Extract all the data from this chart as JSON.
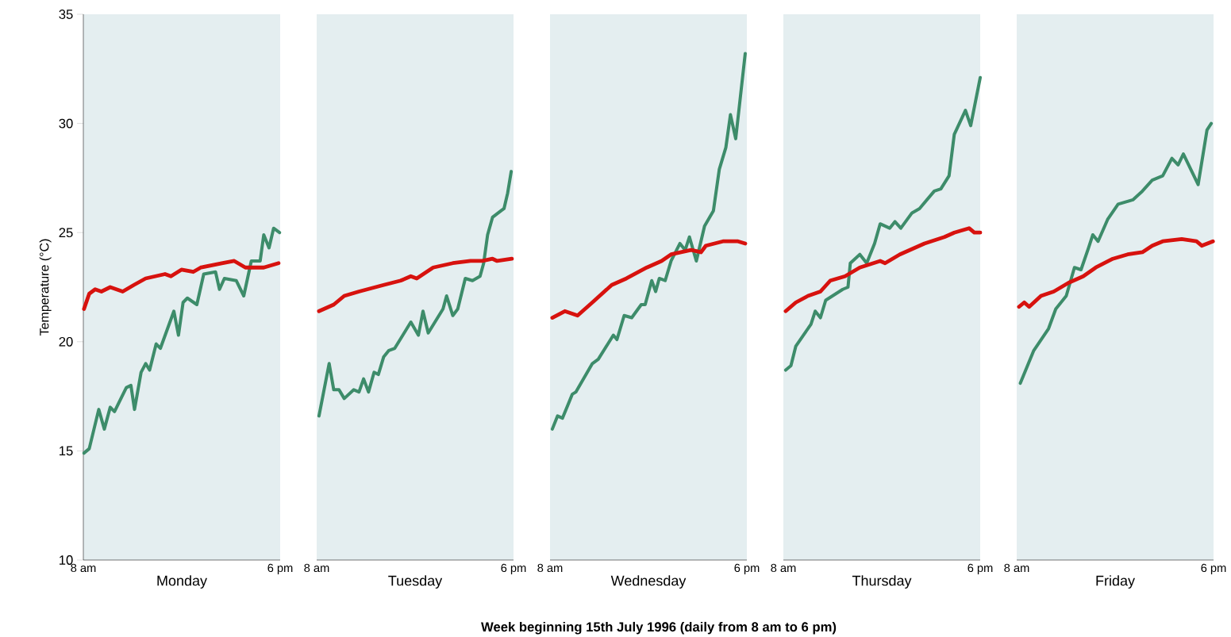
{
  "chart_data": [
    {
      "type": "line",
      "xlabel": "Monday",
      "ylabel": "Temperature (°C)",
      "annotations": [
        "**Week beginning 15th July 1996 (daily from 8 am to 6 pm)**"
      ],
      "xlim": [
        "1996-07-15T08:00",
        "1996-07-15T18:00"
      ],
      "xticks": [
        {
          "value": "1996-07-15T08:00",
          "label": "8 am"
        },
        {
          "value": "1996-07-15T18:00",
          "label": "6 pm"
        }
      ],
      "ylim": [
        10,
        35
      ],
      "yticks": [
        10,
        15,
        20,
        25,
        30,
        35
      ],
      "series": [
        {
          "color": "#3d8c6a",
          "x": [
            "1996-07-15T08:02",
            "1996-07-15T08:18",
            "1996-07-15T08:47",
            "1996-07-15T09:04",
            "1996-07-15T09:22",
            "1996-07-15T09:35",
            "1996-07-15T10:11",
            "1996-07-15T10:25",
            "1996-07-15T10:36",
            "1996-07-15T10:56",
            "1996-07-15T11:10",
            "1996-07-15T11:22",
            "1996-07-15T11:42",
            "1996-07-15T11:55",
            "1996-07-15T12:36",
            "1996-07-15T12:50",
            "1996-07-15T13:04",
            "1996-07-15T13:17",
            "1996-07-15T13:46",
            "1996-07-15T14:07",
            "1996-07-15T14:43",
            "1996-07-15T14:55",
            "1996-07-15T15:10",
            "1996-07-15T15:46",
            "1996-07-15T16:09",
            "1996-07-15T16:32",
            "1996-07-15T16:59",
            "1996-07-15T17:10",
            "1996-07-15T17:26",
            "1996-07-15T17:40",
            "1996-07-15T17:58"
          ],
          "values": [
            14.9,
            15.1,
            16.9,
            16.0,
            17.0,
            16.8,
            17.9,
            18.0,
            16.9,
            18.6,
            19.0,
            18.7,
            19.9,
            19.7,
            21.4,
            20.3,
            21.8,
            22.0,
            21.7,
            23.1,
            23.2,
            22.4,
            22.9,
            22.8,
            22.1,
            23.7,
            23.7,
            24.9,
            24.3,
            25.2,
            25.0
          ]
        },
        {
          "color": "#d7120e",
          "x": [
            "1996-07-15T08:02",
            "1996-07-15T08:18",
            "1996-07-15T08:36",
            "1996-07-15T08:55",
            "1996-07-15T09:22",
            "1996-07-15T10:00",
            "1996-07-15T10:34",
            "1996-07-15T11:10",
            "1996-07-15T12:09",
            "1996-07-15T12:27",
            "1996-07-15T12:59",
            "1996-07-15T13:35",
            "1996-07-15T13:58",
            "1996-07-15T15:05",
            "1996-07-15T15:40",
            "1996-07-15T16:14",
            "1996-07-15T17:10",
            "1996-07-15T17:55"
          ],
          "values": [
            21.5,
            22.2,
            22.4,
            22.3,
            22.5,
            22.3,
            22.6,
            22.9,
            23.1,
            23.0,
            23.3,
            23.2,
            23.4,
            23.6,
            23.7,
            23.4,
            23.4,
            23.6
          ]
        }
      ]
    },
    {
      "type": "line",
      "xlabel": "Tuesday",
      "tick_labels": "x",
      "xlim": [
        "1996-07-16T08:00",
        "1996-07-16T18:00"
      ],
      "xticks": [
        {
          "value": "1996-07-16T08:00",
          "label": "8 am"
        },
        {
          "value": "1996-07-16T18:00",
          "label": "6 pm"
        }
      ],
      "ylim": [
        10,
        35
      ],
      "yticks": [
        10,
        15,
        20,
        25,
        30,
        35
      ],
      "series": [
        {
          "color": "#3d8c6a",
          "x": [
            "1996-07-16T08:07",
            "1996-07-16T08:38",
            "1996-07-16T08:52",
            "1996-07-16T09:08",
            "1996-07-16T09:24",
            "1996-07-16T09:53",
            "1996-07-16T10:09",
            "1996-07-16T10:23",
            "1996-07-16T10:38",
            "1996-07-16T10:55",
            "1996-07-16T11:08",
            "1996-07-16T11:24",
            "1996-07-16T11:40",
            "1996-07-16T11:58",
            "1996-07-16T12:47",
            "1996-07-16T13:10",
            "1996-07-16T13:24",
            "1996-07-16T13:40",
            "1996-07-16T14:25",
            "1996-07-16T14:36",
            "1996-07-16T14:55",
            "1996-07-16T15:10",
            "1996-07-16T15:33",
            "1996-07-16T15:55",
            "1996-07-16T16:18",
            "1996-07-16T16:29",
            "1996-07-16T16:41",
            "1996-07-16T16:56",
            "1996-07-16T17:22",
            "1996-07-16T17:31",
            "1996-07-16T17:42",
            "1996-07-16T17:53"
          ],
          "values": [
            16.6,
            19.0,
            17.8,
            17.8,
            17.4,
            17.8,
            17.7,
            18.3,
            17.7,
            18.6,
            18.5,
            19.3,
            19.6,
            19.7,
            20.9,
            20.3,
            21.4,
            20.4,
            21.5,
            22.1,
            21.2,
            21.5,
            22.9,
            22.8,
            23.0,
            23.6,
            24.9,
            25.7,
            26.0,
            26.1,
            26.8,
            27.8
          ]
        },
        {
          "color": "#d7120e",
          "x": [
            "1996-07-16T08:07",
            "1996-07-16T08:52",
            "1996-07-16T09:24",
            "1996-07-16T10:09",
            "1996-07-16T11:24",
            "1996-07-16T12:16",
            "1996-07-16T12:47",
            "1996-07-16T13:05",
            "1996-07-16T13:55",
            "1996-07-16T14:55",
            "1996-07-16T15:49",
            "1996-07-16T16:25",
            "1996-07-16T16:56",
            "1996-07-16T17:10",
            "1996-07-16T17:55"
          ],
          "values": [
            21.4,
            21.7,
            22.1,
            22.3,
            22.6,
            22.8,
            23.0,
            22.9,
            23.4,
            23.6,
            23.7,
            23.7,
            23.8,
            23.7,
            23.8
          ]
        }
      ]
    },
    {
      "type": "line",
      "xlabel": "Wednesday",
      "tick_labels": "x",
      "xlim": [
        "1996-07-17T08:00",
        "1996-07-17T18:00"
      ],
      "xticks": [
        {
          "value": "1996-07-17T08:00",
          "label": "8 am"
        },
        {
          "value": "1996-07-17T18:00",
          "label": "6 pm"
        }
      ],
      "ylim": [
        10,
        35
      ],
      "yticks": [
        10,
        15,
        20,
        25,
        30,
        35
      ],
      "series": [
        {
          "color": "#3d8c6a",
          "x": [
            "1996-07-17T08:07",
            "1996-07-17T08:23",
            "1996-07-17T08:38",
            "1996-07-17T09:08",
            "1996-07-17T09:19",
            "1996-07-17T10:09",
            "1996-07-17T10:27",
            "1996-07-17T11:13",
            "1996-07-17T11:24",
            "1996-07-17T11:46",
            "1996-07-17T12:09",
            "1996-07-17T12:38",
            "1996-07-17T12:50",
            "1996-07-17T13:10",
            "1996-07-17T13:22",
            "1996-07-17T13:33",
            "1996-07-17T13:51",
            "1996-07-17T14:09",
            "1996-07-17T14:36",
            "1996-07-17T14:52",
            "1996-07-17T15:05",
            "1996-07-17T15:26",
            "1996-07-17T15:51",
            "1996-07-17T16:18",
            "1996-07-17T16:36",
            "1996-07-17T16:56",
            "1996-07-17T17:10",
            "1996-07-17T17:26",
            "1996-07-17T17:55"
          ],
          "values": [
            16.0,
            16.6,
            16.5,
            17.6,
            17.7,
            19.0,
            19.2,
            20.3,
            20.1,
            21.2,
            21.1,
            21.7,
            21.7,
            22.8,
            22.3,
            22.9,
            22.8,
            23.7,
            24.5,
            24.2,
            24.8,
            23.7,
            25.3,
            26.0,
            27.9,
            28.9,
            30.4,
            29.3,
            33.2
          ]
        },
        {
          "color": "#d7120e",
          "x": [
            "1996-07-17T08:07",
            "1996-07-17T08:45",
            "1996-07-17T09:24",
            "1996-07-17T10:09",
            "1996-07-17T11:08",
            "1996-07-17T11:53",
            "1996-07-17T12:55",
            "1996-07-17T13:40",
            "1996-07-17T14:09",
            "1996-07-17T15:10",
            "1996-07-17T15:40",
            "1996-07-17T15:55",
            "1996-07-17T16:47",
            "1996-07-17T17:33",
            "1996-07-17T17:55"
          ],
          "values": [
            21.1,
            21.4,
            21.2,
            21.8,
            22.6,
            22.9,
            23.4,
            23.7,
            24.0,
            24.2,
            24.1,
            24.4,
            24.6,
            24.6,
            24.5
          ]
        }
      ]
    },
    {
      "type": "line",
      "xlabel": "Thursday",
      "tick_labels": "x",
      "xlim": [
        "1996-07-18T08:00",
        "1996-07-18T18:00"
      ],
      "xticks": [
        {
          "value": "1996-07-18T08:00",
          "label": "8 am"
        },
        {
          "value": "1996-07-18T18:00",
          "label": "6 pm"
        }
      ],
      "ylim": [
        10,
        35
      ],
      "yticks": [
        10,
        15,
        20,
        25,
        30,
        35
      ],
      "series": [
        {
          "color": "#3d8c6a",
          "x": [
            "1996-07-18T08:07",
            "1996-07-18T08:23",
            "1996-07-18T08:38",
            "1996-07-18T09:24",
            "1996-07-18T09:37",
            "1996-07-18T09:53",
            "1996-07-18T10:09",
            "1996-07-18T11:01",
            "1996-07-18T11:17",
            "1996-07-18T11:24",
            "1996-07-18T11:53",
            "1996-07-18T12:14",
            "1996-07-18T12:38",
            "1996-07-18T12:55",
            "1996-07-18T13:24",
            "1996-07-18T13:40",
            "1996-07-18T13:58",
            "1996-07-18T14:32",
            "1996-07-18T14:55",
            "1996-07-18T15:40",
            "1996-07-18T16:00",
            "1996-07-18T16:25",
            "1996-07-18T16:41",
            "1996-07-18T17:15",
            "1996-07-18T17:31",
            "1996-07-18T18:00"
          ],
          "values": [
            18.7,
            18.9,
            19.8,
            20.8,
            21.4,
            21.1,
            21.9,
            22.4,
            22.5,
            23.6,
            24.0,
            23.6,
            24.5,
            25.4,
            25.2,
            25.5,
            25.2,
            25.9,
            26.1,
            26.9,
            27.0,
            27.6,
            29.5,
            30.6,
            29.9,
            32.1
          ]
        },
        {
          "color": "#d7120e",
          "x": [
            "1996-07-18T08:07",
            "1996-07-18T08:38",
            "1996-07-18T09:15",
            "1996-07-18T09:53",
            "1996-07-18T10:23",
            "1996-07-18T11:08",
            "1996-07-18T11:53",
            "1996-07-18T12:55",
            "1996-07-18T13:10",
            "1996-07-18T13:55",
            "1996-07-18T15:10",
            "1996-07-18T16:11",
            "1996-07-18T16:41",
            "1996-07-18T17:26",
            "1996-07-18T17:42",
            "1996-07-18T18:00"
          ],
          "values": [
            21.4,
            21.8,
            22.1,
            22.3,
            22.8,
            23.0,
            23.4,
            23.7,
            23.6,
            24.0,
            24.5,
            24.8,
            25.0,
            25.2,
            25.0,
            25.0
          ]
        }
      ]
    },
    {
      "type": "line",
      "xlabel": "Friday",
      "tick_labels": "x",
      "xlim": [
        "1996-07-19T08:00",
        "1996-07-19T18:00"
      ],
      "xticks": [
        {
          "value": "1996-07-19T08:00",
          "label": "8 am"
        },
        {
          "value": "1996-07-19T18:00",
          "label": "6 pm"
        }
      ],
      "ylim": [
        10,
        35
      ],
      "yticks": [
        10,
        15,
        20,
        25,
        30,
        35
      ],
      "series": [
        {
          "color": "#3d8c6a",
          "x": [
            "1996-07-19T08:11",
            "1996-07-19T08:52",
            "1996-07-19T09:37",
            "1996-07-19T09:59",
            "1996-07-19T10:31",
            "1996-07-19T10:56",
            "1996-07-19T11:16",
            "1996-07-19T11:39",
            "1996-07-19T11:52",
            "1996-07-19T12:08",
            "1996-07-19T12:37",
            "1996-07-19T13:09",
            "1996-07-19T13:54",
            "1996-07-19T14:23",
            "1996-07-19T14:53",
            "1996-07-19T15:25",
            "1996-07-19T15:53",
            "1996-07-19T16:12",
            "1996-07-19T16:28",
            "1996-07-19T17:13",
            "1996-07-19T17:40",
            "1996-07-19T17:53"
          ],
          "values": [
            18.1,
            19.6,
            20.6,
            21.5,
            22.1,
            23.4,
            23.3,
            24.3,
            24.9,
            24.6,
            25.6,
            26.3,
            26.5,
            26.9,
            27.4,
            27.6,
            28.4,
            28.1,
            28.6,
            27.2,
            29.7,
            30.0
          ]
        },
        {
          "color": "#d7120e",
          "x": [
            "1996-07-19T08:07",
            "1996-07-19T08:23",
            "1996-07-19T08:38",
            "1996-07-19T09:14",
            "1996-07-19T09:53",
            "1996-07-19T10:38",
            "1996-07-19T11:23",
            "1996-07-19T12:01",
            "1996-07-19T12:53",
            "1996-07-19T13:38",
            "1996-07-19T14:23",
            "1996-07-19T14:53",
            "1996-07-19T15:25",
            "1996-07-19T16:23",
            "1996-07-19T17:08",
            "1996-07-19T17:24",
            "1996-07-19T17:58"
          ],
          "values": [
            21.6,
            21.8,
            21.6,
            22.1,
            22.3,
            22.7,
            23.0,
            23.4,
            23.8,
            24.0,
            24.1,
            24.4,
            24.6,
            24.7,
            24.6,
            24.4,
            24.6
          ]
        }
      ]
    }
  ]
}
